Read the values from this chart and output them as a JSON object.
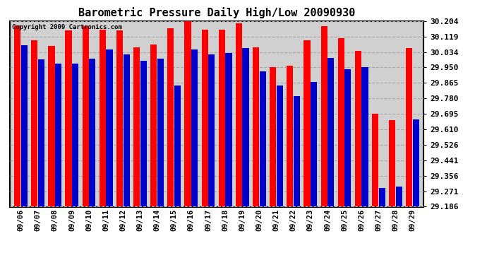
{
  "title": "Barometric Pressure Daily High/Low 20090930",
  "copyright": "Copyright 2009 Cartronics.com",
  "dates": [
    "09/06",
    "09/07",
    "09/08",
    "09/09",
    "09/10",
    "09/11",
    "09/12",
    "09/13",
    "09/14",
    "09/15",
    "09/16",
    "09/17",
    "09/18",
    "09/19",
    "09/20",
    "09/21",
    "09/22",
    "09/23",
    "09/24",
    "09/25",
    "09/26",
    "09/27",
    "09/28",
    "09/29"
  ],
  "highs": [
    30.182,
    30.1,
    30.068,
    30.152,
    30.178,
    30.158,
    30.155,
    30.06,
    30.075,
    30.164,
    30.204,
    30.158,
    30.158,
    30.193,
    30.06,
    29.952,
    29.96,
    30.1,
    30.176,
    30.112,
    30.04,
    29.695,
    29.66,
    30.055
  ],
  "lows": [
    30.073,
    29.995,
    29.97,
    29.972,
    29.998,
    30.05,
    30.022,
    29.985,
    29.998,
    29.85,
    30.05,
    30.022,
    30.03,
    30.055,
    29.927,
    29.852,
    29.793,
    29.869,
    30.004,
    29.94,
    29.95,
    29.29,
    29.295,
    29.665
  ],
  "high_color": "#ff0000",
  "low_color": "#0000cc",
  "background_color": "#ffffff",
  "plot_bg_color": "#d0d0d0",
  "grid_color": "#aaaaaa",
  "ymin": 29.186,
  "ymax": 30.204,
  "yticks": [
    29.186,
    29.271,
    29.356,
    29.441,
    29.526,
    29.61,
    29.695,
    29.78,
    29.865,
    29.95,
    30.034,
    30.119,
    30.204
  ]
}
